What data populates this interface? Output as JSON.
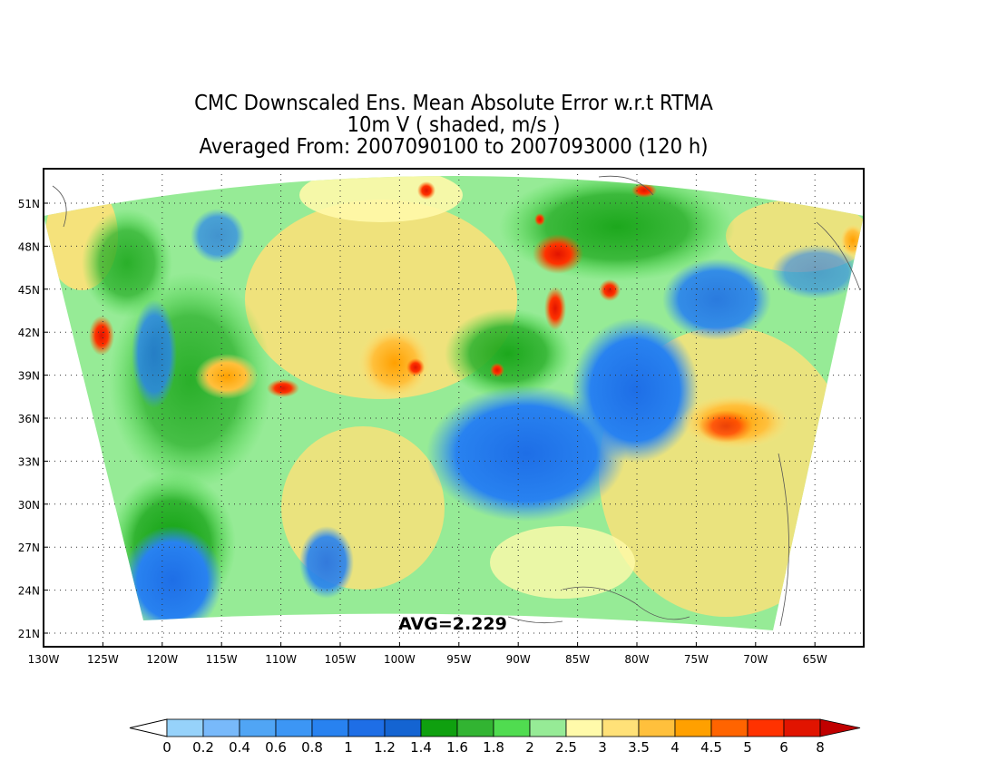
{
  "title": {
    "line1": "CMC Downscaled Ens. Mean Absolute Error w.r.t RTMA",
    "line2": "10m V ( shaded, m/s )",
    "line3": "Averaged From: 2007090100 to 2007093000 (120 h)"
  },
  "map": {
    "region": "Continental United States",
    "average_label": "AVG=2.229",
    "lat_labels": [
      "51N",
      "48N",
      "45N",
      "42N",
      "39N",
      "36N",
      "33N",
      "30N",
      "27N",
      "24N",
      "21N"
    ],
    "lon_labels": [
      "130W",
      "125W",
      "120W",
      "115W",
      "110W",
      "105W",
      "100W",
      "95W",
      "90W",
      "85W",
      "80W",
      "75W",
      "70W",
      "65W"
    ],
    "grid": "dotted"
  },
  "colorbar": {
    "labels": [
      "0",
      "0.2",
      "0.4",
      "0.6",
      "0.8",
      "1",
      "1.2",
      "1.4",
      "1.6",
      "1.8",
      "2",
      "2.5",
      "3",
      "3.5",
      "4",
      "4.5",
      "5",
      "6",
      "8"
    ],
    "colors": [
      "#96d2fa",
      "#78b9fa",
      "#50a5f5",
      "#3c96f5",
      "#2882f0",
      "#1e6ee6",
      "#1464d2",
      "#0fa00f",
      "#32b432",
      "#50dc50",
      "#96eb96",
      "#fffaaa",
      "#ffe178",
      "#ffc03c",
      "#ffa000",
      "#ff6400",
      "#ff3200",
      "#e11400",
      "#c00000"
    ]
  }
}
